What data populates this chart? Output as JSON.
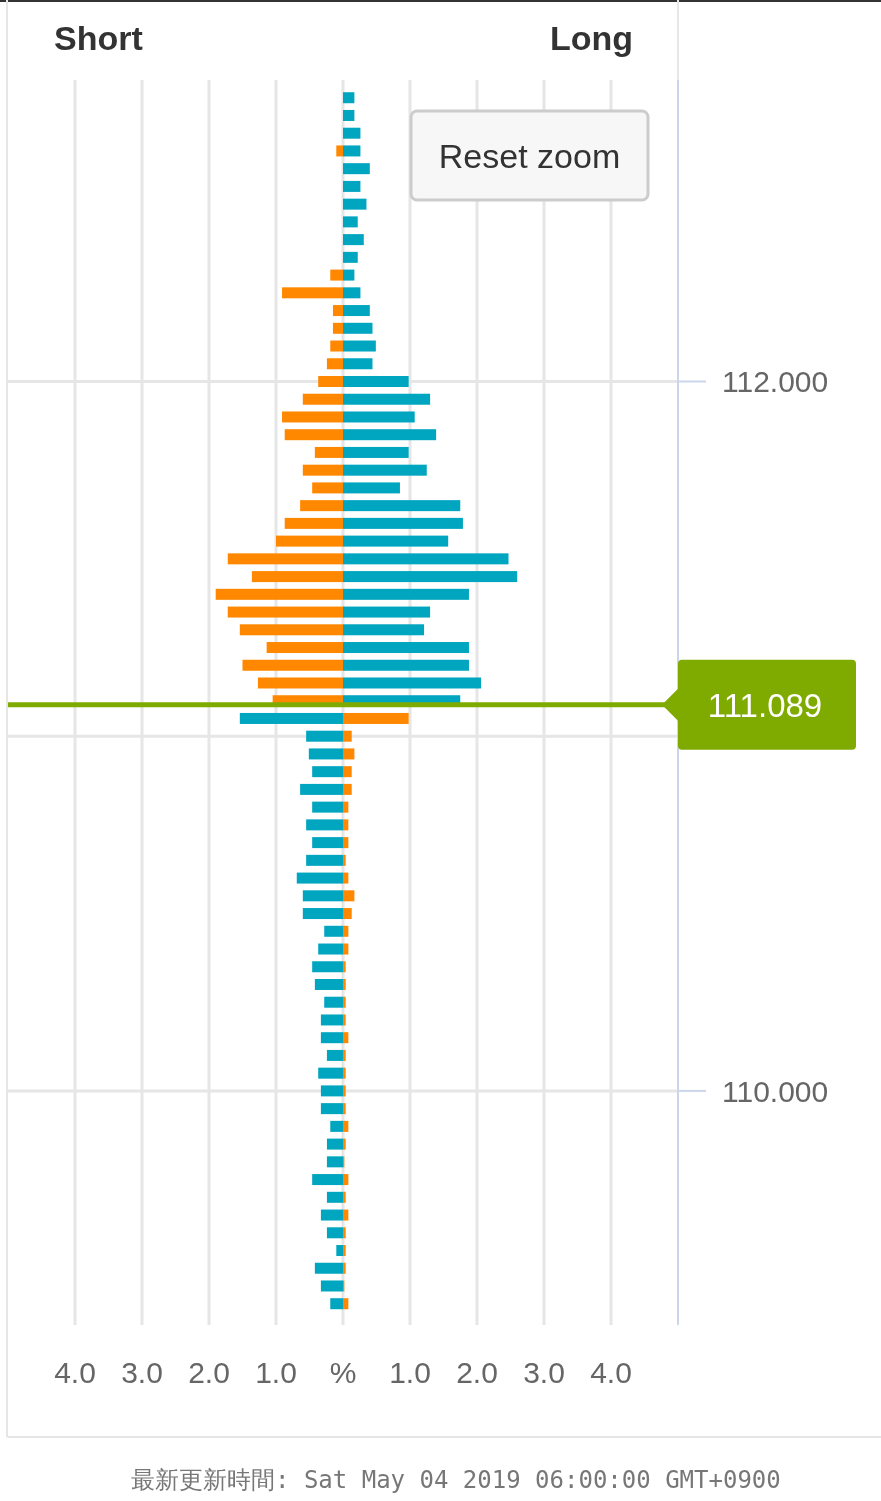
{
  "chart_data": {
    "type": "bar",
    "orientation": "horizontal",
    "annotations": [
      "Short",
      "Long",
      "Reset zoom",
      "最新更新時間: Sat May 04 2019 06:00:00 GMT+0900"
    ],
    "x": [
      112.8,
      112.75,
      112.7,
      112.65,
      112.6,
      112.55,
      112.5,
      112.45,
      112.4,
      112.35,
      112.3,
      112.25,
      112.2,
      112.15,
      112.1,
      112.05,
      112.0,
      111.95,
      111.9,
      111.85,
      111.8,
      111.75,
      111.7,
      111.65,
      111.6,
      111.55,
      111.5,
      111.45,
      111.4,
      111.35,
      111.3,
      111.25,
      111.2,
      111.15,
      111.1,
      111.05,
      111.0,
      110.95,
      110.9,
      110.85,
      110.8,
      110.75,
      110.7,
      110.65,
      110.6,
      110.55,
      110.5,
      110.45,
      110.4,
      110.35,
      110.3,
      110.25,
      110.2,
      110.15,
      110.1,
      110.05,
      110.0,
      109.95,
      109.9,
      109.85,
      109.8,
      109.75,
      109.7,
      109.65,
      109.6,
      109.55,
      109.5,
      109.45,
      109.4
    ],
    "series": [
      {
        "values": [
          null,
          null,
          null,
          -0.1,
          null,
          null,
          null,
          null,
          null,
          null,
          -0.19,
          -0.91,
          -0.15,
          -0.15,
          -0.19,
          -0.24,
          -0.37,
          -0.6,
          -0.91,
          -0.87,
          -0.42,
          -0.6,
          -0.46,
          -0.64,
          -0.87,
          -1.0,
          -1.72,
          -1.36,
          -1.9,
          -1.72,
          -1.54,
          -1.14,
          -1.5,
          -1.27,
          -1.05,
          -1.54,
          -0.55,
          -0.51,
          -0.46,
          -0.64,
          -0.46,
          -0.55,
          -0.46,
          -0.55,
          -0.69,
          -0.6,
          -0.6,
          -0.28,
          -0.37,
          -0.46,
          -0.42,
          -0.28,
          -0.33,
          -0.33,
          -0.24,
          -0.37,
          -0.33,
          -0.33,
          -0.19,
          -0.24,
          -0.24,
          -0.46,
          -0.24,
          -0.33,
          -0.24,
          -0.1,
          -0.42,
          -0.33,
          -0.19
        ],
        "colors": [
          null,
          null,
          null,
          "#ff8800",
          null,
          null,
          null,
          null,
          null,
          null,
          "#ff8800",
          "#ff8800",
          "#ff8800",
          "#ff8800",
          "#ff8800",
          "#ff8800",
          "#ff8800",
          "#ff8800",
          "#ff8800",
          "#ff8800",
          "#ff8800",
          "#ff8800",
          "#ff8800",
          "#ff8800",
          "#ff8800",
          "#ff8800",
          "#ff8800",
          "#ff8800",
          "#ff8800",
          "#ff8800",
          "#ff8800",
          "#ff8800",
          "#ff8800",
          "#ff8800",
          "#ff8800",
          "#00a5c0",
          "#00a5c0",
          "#00a5c0",
          "#00a5c0",
          "#00a5c0",
          "#00a5c0",
          "#00a5c0",
          "#00a5c0",
          "#00a5c0",
          "#00a5c0",
          "#00a5c0",
          "#00a5c0",
          "#00a5c0",
          "#00a5c0",
          "#00a5c0",
          "#00a5c0",
          "#00a5c0",
          "#00a5c0",
          "#00a5c0",
          "#00a5c0",
          "#00a5c0",
          "#00a5c0",
          "#00a5c0",
          "#00a5c0",
          "#00a5c0",
          "#00a5c0",
          "#00a5c0",
          "#00a5c0",
          "#00a5c0",
          "#00a5c0",
          "#00a5c0",
          "#00a5c0",
          "#00a5c0",
          "#00a5c0"
        ]
      },
      {
        "values": [
          0.17,
          0.17,
          0.26,
          0.26,
          0.4,
          0.26,
          0.35,
          0.22,
          0.31,
          0.22,
          0.17,
          0.26,
          0.4,
          0.44,
          0.49,
          0.44,
          0.98,
          1.3,
          1.07,
          1.39,
          0.98,
          1.25,
          0.85,
          1.75,
          1.79,
          1.57,
          2.47,
          2.6,
          1.88,
          1.3,
          1.21,
          1.88,
          1.88,
          2.06,
          1.75,
          0.98,
          0.13,
          0.17,
          0.13,
          0.13,
          0.08,
          0.08,
          0.08,
          0.04,
          0.08,
          0.17,
          0.13,
          0.08,
          0.08,
          0.04,
          0.04,
          0.04,
          0.04,
          0.08,
          0.04,
          0.04,
          0.04,
          0.04,
          0.08,
          0.04,
          0.02,
          0.08,
          0.04,
          0.08,
          0.04,
          0.04,
          0.04,
          0.02,
          0.08
        ],
        "colors": [
          "#00a5c0",
          "#00a5c0",
          "#00a5c0",
          "#00a5c0",
          "#00a5c0",
          "#00a5c0",
          "#00a5c0",
          "#00a5c0",
          "#00a5c0",
          "#00a5c0",
          "#00a5c0",
          "#00a5c0",
          "#00a5c0",
          "#00a5c0",
          "#00a5c0",
          "#00a5c0",
          "#00a5c0",
          "#00a5c0",
          "#00a5c0",
          "#00a5c0",
          "#00a5c0",
          "#00a5c0",
          "#00a5c0",
          "#00a5c0",
          "#00a5c0",
          "#00a5c0",
          "#00a5c0",
          "#00a5c0",
          "#00a5c0",
          "#00a5c0",
          "#00a5c0",
          "#00a5c0",
          "#00a5c0",
          "#00a5c0",
          "#00a5c0",
          "#ff8800",
          "#ff8800",
          "#ff8800",
          "#ff8800",
          "#ff8800",
          "#ff8800",
          "#ff8800",
          "#ff8800",
          "#ff8800",
          "#ff8800",
          "#ff8800",
          "#ff8800",
          "#ff8800",
          "#ff8800",
          "#ff8800",
          "#ff8800",
          "#ff8800",
          "#ff8800",
          "#ff8800",
          "#ff8800",
          "#ff8800",
          "#ff8800",
          "#ff8800",
          "#ff8800",
          "#ff8800",
          "#ff8800",
          "#ff8800",
          "#ff8800",
          "#ff8800",
          "#ff8800",
          "#ff8800",
          "#ff8800",
          "#ff8800",
          "#ff8800"
        ]
      }
    ],
    "stacked": true,
    "xlim": [
      -5,
      5
    ],
    "xticks": [
      {
        "value": -4,
        "label": "4.0"
      },
      {
        "value": -3,
        "label": "3.0"
      },
      {
        "value": -2,
        "label": "2.0"
      },
      {
        "value": -1,
        "label": "1.0"
      },
      {
        "value": 0,
        "label": "%"
      },
      {
        "value": 1,
        "label": "1.0"
      },
      {
        "value": 2,
        "label": "2.0"
      },
      {
        "value": 3,
        "label": "3.0"
      },
      {
        "value": 4,
        "label": "4.0"
      }
    ],
    "ylim": [
      109.34,
      112.85
    ],
    "yticks": [
      {
        "value": 110,
        "label": "110.000"
      },
      {
        "value": 111,
        "label": null
      },
      {
        "value": 112,
        "label": "112.000"
      }
    ],
    "ref_lines": [
      {
        "axis": "y",
        "value": 111.089,
        "label": "111.089",
        "color": "#7fab00"
      }
    ],
    "grid": true
  }
}
